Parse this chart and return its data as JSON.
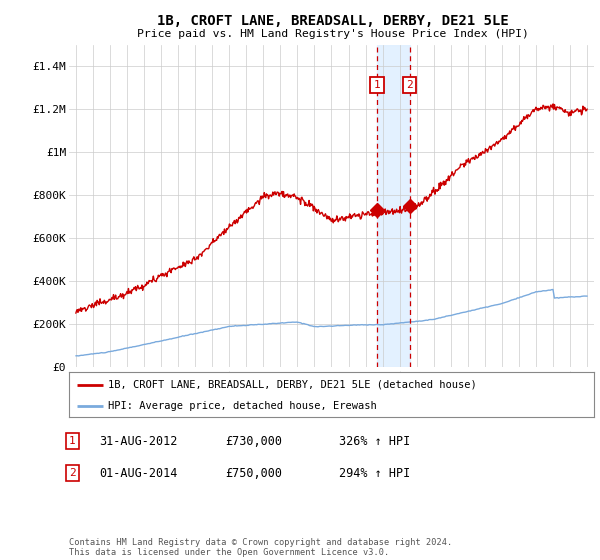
{
  "title": "1B, CROFT LANE, BREADSALL, DERBY, DE21 5LE",
  "subtitle": "Price paid vs. HM Land Registry's House Price Index (HPI)",
  "ylim": [
    0,
    1500000
  ],
  "yticks": [
    0,
    200000,
    400000,
    600000,
    800000,
    1000000,
    1200000,
    1400000
  ],
  "ytick_labels": [
    "£0",
    "£200K",
    "£400K",
    "£600K",
    "£800K",
    "£1M",
    "£1.2M",
    "£1.4M"
  ],
  "xlim_left": 1994.6,
  "xlim_right": 2025.4,
  "line1_color": "#cc0000",
  "line2_color": "#7aaadd",
  "shade_color": "#ddeeff",
  "legend_line1": "1B, CROFT LANE, BREADSALL, DERBY, DE21 5LE (detached house)",
  "legend_line2": "HPI: Average price, detached house, Erewash",
  "sale1_date": "31-AUG-2012",
  "sale1_price": "£730,000",
  "sale1_hpi": "326% ↑ HPI",
  "sale1_year": 2012.67,
  "sale1_value": 730000,
  "sale2_date": "01-AUG-2014",
  "sale2_price": "£750,000",
  "sale2_hpi": "294% ↑ HPI",
  "sale2_year": 2014.58,
  "sale2_value": 750000,
  "footer": "Contains HM Land Registry data © Crown copyright and database right 2024.\nThis data is licensed under the Open Government Licence v3.0.",
  "background_color": "#ffffff",
  "grid_color": "#cccccc"
}
